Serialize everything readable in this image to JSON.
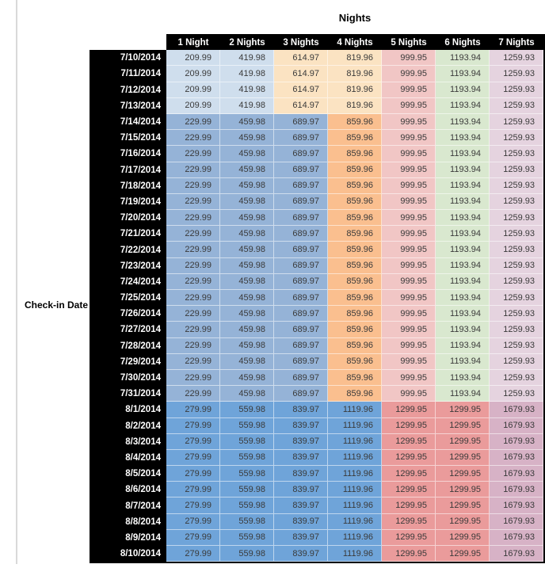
{
  "axis_labels": {
    "columns": "Nights",
    "rows": "Check-in Date"
  },
  "colors": {
    "header_bg": "#000000",
    "header_text": "#ffffff",
    "cell_text": "#3a3a3a",
    "sheet_gridline": "#d9d9d9",
    "light_blue": "#cfdeed",
    "light_orange": "#fbe3c2",
    "medium_blue": "#95b3d7",
    "medium_orange": "#fabf8f",
    "pink": "#f1c6c5",
    "green": "#d9e8cf",
    "lilac": "#e5d3df",
    "strong_blue": "#6fa4d9",
    "salmon": "#ea9b9b",
    "mauve": "#d7b2c6"
  },
  "chart_data": {
    "type": "table",
    "title": "Nights",
    "row_axis_label": "Check-in Date",
    "columns": [
      "1 Night",
      "2 Nights",
      "3 Nights",
      "4 Nights",
      "5 Nights",
      "6 Nights",
      "7 Nights"
    ],
    "bands": {
      "early": {
        "cell_colors": [
          "#cfdeed",
          "#cfdeed",
          "#fbe3c2",
          "#fbe3c2",
          "#f1c6c5",
          "#d9e8cf",
          "#e5d3df"
        ]
      },
      "mid": {
        "cell_colors": [
          "#95b3d7",
          "#95b3d7",
          "#95b3d7",
          "#fabf8f",
          "#f1c6c5",
          "#d9e8cf",
          "#e5d3df"
        ]
      },
      "late": {
        "cell_colors": [
          "#6fa4d9",
          "#6fa4d9",
          "#6fa4d9",
          "#6fa4d9",
          "#ea9b9b",
          "#ea9b9b",
          "#d7b2c6"
        ]
      }
    },
    "rows": [
      {
        "date": "7/10/2014",
        "band": "early",
        "values": [
          "209.99",
          "419.98",
          "614.97",
          "819.96",
          "999.95",
          "1193.94",
          "1259.93"
        ]
      },
      {
        "date": "7/11/2014",
        "band": "early",
        "values": [
          "209.99",
          "419.98",
          "614.97",
          "819.96",
          "999.95",
          "1193.94",
          "1259.93"
        ]
      },
      {
        "date": "7/12/2014",
        "band": "early",
        "values": [
          "209.99",
          "419.98",
          "614.97",
          "819.96",
          "999.95",
          "1193.94",
          "1259.93"
        ]
      },
      {
        "date": "7/13/2014",
        "band": "early",
        "values": [
          "209.99",
          "419.98",
          "614.97",
          "819.96",
          "999.95",
          "1193.94",
          "1259.93"
        ]
      },
      {
        "date": "7/14/2014",
        "band": "mid",
        "values": [
          "229.99",
          "459.98",
          "689.97",
          "859.96",
          "999.95",
          "1193.94",
          "1259.93"
        ]
      },
      {
        "date": "7/15/2014",
        "band": "mid",
        "values": [
          "229.99",
          "459.98",
          "689.97",
          "859.96",
          "999.95",
          "1193.94",
          "1259.93"
        ]
      },
      {
        "date": "7/16/2014",
        "band": "mid",
        "values": [
          "229.99",
          "459.98",
          "689.97",
          "859.96",
          "999.95",
          "1193.94",
          "1259.93"
        ]
      },
      {
        "date": "7/17/2014",
        "band": "mid",
        "values": [
          "229.99",
          "459.98",
          "689.97",
          "859.96",
          "999.95",
          "1193.94",
          "1259.93"
        ]
      },
      {
        "date": "7/18/2014",
        "band": "mid",
        "values": [
          "229.99",
          "459.98",
          "689.97",
          "859.96",
          "999.95",
          "1193.94",
          "1259.93"
        ]
      },
      {
        "date": "7/19/2014",
        "band": "mid",
        "values": [
          "229.99",
          "459.98",
          "689.97",
          "859.96",
          "999.95",
          "1193.94",
          "1259.93"
        ]
      },
      {
        "date": "7/20/2014",
        "band": "mid",
        "values": [
          "229.99",
          "459.98",
          "689.97",
          "859.96",
          "999.95",
          "1193.94",
          "1259.93"
        ]
      },
      {
        "date": "7/21/2014",
        "band": "mid",
        "values": [
          "229.99",
          "459.98",
          "689.97",
          "859.96",
          "999.95",
          "1193.94",
          "1259.93"
        ]
      },
      {
        "date": "7/22/2014",
        "band": "mid",
        "values": [
          "229.99",
          "459.98",
          "689.97",
          "859.96",
          "999.95",
          "1193.94",
          "1259.93"
        ]
      },
      {
        "date": "7/23/2014",
        "band": "mid",
        "values": [
          "229.99",
          "459.98",
          "689.97",
          "859.96",
          "999.95",
          "1193.94",
          "1259.93"
        ]
      },
      {
        "date": "7/24/2014",
        "band": "mid",
        "values": [
          "229.99",
          "459.98",
          "689.97",
          "859.96",
          "999.95",
          "1193.94",
          "1259.93"
        ]
      },
      {
        "date": "7/25/2014",
        "band": "mid",
        "values": [
          "229.99",
          "459.98",
          "689.97",
          "859.96",
          "999.95",
          "1193.94",
          "1259.93"
        ]
      },
      {
        "date": "7/26/2014",
        "band": "mid",
        "values": [
          "229.99",
          "459.98",
          "689.97",
          "859.96",
          "999.95",
          "1193.94",
          "1259.93"
        ]
      },
      {
        "date": "7/27/2014",
        "band": "mid",
        "values": [
          "229.99",
          "459.98",
          "689.97",
          "859.96",
          "999.95",
          "1193.94",
          "1259.93"
        ]
      },
      {
        "date": "7/28/2014",
        "band": "mid",
        "values": [
          "229.99",
          "459.98",
          "689.97",
          "859.96",
          "999.95",
          "1193.94",
          "1259.93"
        ]
      },
      {
        "date": "7/29/2014",
        "band": "mid",
        "values": [
          "229.99",
          "459.98",
          "689.97",
          "859.96",
          "999.95",
          "1193.94",
          "1259.93"
        ]
      },
      {
        "date": "7/30/2014",
        "band": "mid",
        "values": [
          "229.99",
          "459.98",
          "689.97",
          "859.96",
          "999.95",
          "1193.94",
          "1259.93"
        ]
      },
      {
        "date": "7/31/2014",
        "band": "mid",
        "values": [
          "229.99",
          "459.98",
          "689.97",
          "859.96",
          "999.95",
          "1193.94",
          "1259.93"
        ]
      },
      {
        "date": "8/1/2014",
        "band": "late",
        "values": [
          "279.99",
          "559.98",
          "839.97",
          "1119.96",
          "1299.95",
          "1299.95",
          "1679.93"
        ]
      },
      {
        "date": "8/2/2014",
        "band": "late",
        "values": [
          "279.99",
          "559.98",
          "839.97",
          "1119.96",
          "1299.95",
          "1299.95",
          "1679.93"
        ]
      },
      {
        "date": "8/3/2014",
        "band": "late",
        "values": [
          "279.99",
          "559.98",
          "839.97",
          "1119.96",
          "1299.95",
          "1299.95",
          "1679.93"
        ]
      },
      {
        "date": "8/4/2014",
        "band": "late",
        "values": [
          "279.99",
          "559.98",
          "839.97",
          "1119.96",
          "1299.95",
          "1299.95",
          "1679.93"
        ]
      },
      {
        "date": "8/5/2014",
        "band": "late",
        "values": [
          "279.99",
          "559.98",
          "839.97",
          "1119.96",
          "1299.95",
          "1299.95",
          "1679.93"
        ]
      },
      {
        "date": "8/6/2014",
        "band": "late",
        "values": [
          "279.99",
          "559.98",
          "839.97",
          "1119.96",
          "1299.95",
          "1299.95",
          "1679.93"
        ]
      },
      {
        "date": "8/7/2014",
        "band": "late",
        "values": [
          "279.99",
          "559.98",
          "839.97",
          "1119.96",
          "1299.95",
          "1299.95",
          "1679.93"
        ]
      },
      {
        "date": "8/8/2014",
        "band": "late",
        "values": [
          "279.99",
          "559.98",
          "839.97",
          "1119.96",
          "1299.95",
          "1299.95",
          "1679.93"
        ]
      },
      {
        "date": "8/9/2014",
        "band": "late",
        "values": [
          "279.99",
          "559.98",
          "839.97",
          "1119.96",
          "1299.95",
          "1299.95",
          "1679.93"
        ]
      },
      {
        "date": "8/10/2014",
        "band": "late",
        "values": [
          "279.99",
          "559.98",
          "839.97",
          "1119.96",
          "1299.95",
          "1299.95",
          "1679.93"
        ]
      }
    ]
  }
}
